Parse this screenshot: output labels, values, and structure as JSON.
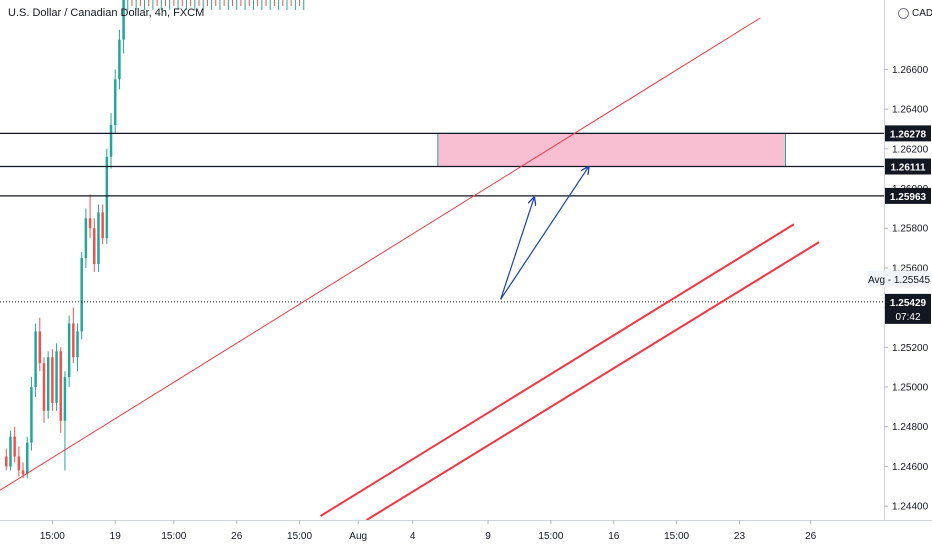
{
  "chart_data": {
    "type": "candlestick",
    "title": "U.S. Dollar / Canadian Dollar, 4h, FXCM",
    "currency": "CAD",
    "ylim": [
      1.2433,
      1.2695
    ],
    "y_ticks": [
      "1.24400",
      "1.24600",
      "1.24800",
      "1.25000",
      "1.25200",
      "1.25400",
      "1.25600",
      "1.25800",
      "1.26000",
      "1.26200",
      "1.26400",
      "1.26600"
    ],
    "x_ticks": [
      {
        "label": "15:00",
        "i": 11
      },
      {
        "label": "19",
        "i": 26
      },
      {
        "label": "15:00",
        "i": 40
      },
      {
        "label": "26",
        "i": 55
      },
      {
        "label": "15:00",
        "i": 70
      },
      {
        "label": "Aug",
        "i": 84
      },
      {
        "label": "4",
        "i": 97
      },
      {
        "label": "9",
        "i": 115
      },
      {
        "label": "15:00",
        "i": 130
      },
      {
        "label": "16",
        "i": 145
      },
      {
        "label": "15:00",
        "i": 160
      },
      {
        "label": "23",
        "i": 175
      },
      {
        "label": "26",
        "i": 192
      }
    ],
    "index_range": [
      -1.5,
      209.5
    ],
    "price_labels": {
      "level1": "1.26278",
      "level2": "1.26111",
      "level3": "1.25963",
      "current": "1.25429",
      "countdown": "07:42",
      "avg": "Avg - 1.25545"
    },
    "levels": [
      1.26278,
      1.26111,
      1.25963
    ],
    "current_price": 1.25429,
    "avg_price": 1.25545,
    "zone": {
      "i_start": 103,
      "i_end": 186,
      "top": 1.26278,
      "bottom": 1.26111
    },
    "lines": [
      {
        "name": "upper-trendline",
        "i1": -1.5,
        "p1": 1.2448,
        "i2": 180,
        "p2": 1.2686,
        "width": 1
      },
      {
        "name": "lower-channel-line-1",
        "i1": 75,
        "p1": 1.2435,
        "i2": 188,
        "p2": 1.2582,
        "width": 2
      },
      {
        "name": "lower-channel-line-2",
        "i1": 86,
        "p1": 1.2433,
        "i2": 194,
        "p2": 1.2573,
        "width": 2
      }
    ],
    "arrows": [
      {
        "name": "projection-arrow-1",
        "i1": 118,
        "p1": 1.25442,
        "i2": 126,
        "p2": 1.25955
      },
      {
        "name": "projection-arrow-2",
        "i1": 118,
        "p1": 1.25442,
        "i2": 139,
        "p2": 1.2611
      }
    ],
    "candles": [
      [
        1.2465,
        1.2469,
        1.2458,
        1.246
      ],
      [
        1.246,
        1.2478,
        1.2458,
        1.2475
      ],
      [
        1.2475,
        1.248,
        1.2462,
        1.2465
      ],
      [
        1.2465,
        1.247,
        1.2455,
        1.2458
      ],
      [
        1.2458,
        1.2462,
        1.2454,
        1.2456
      ],
      [
        1.2456,
        1.2475,
        1.2454,
        1.2472
      ],
      [
        1.2472,
        1.2505,
        1.2468,
        1.25
      ],
      [
        1.25,
        1.2532,
        1.2495,
        1.2528
      ],
      [
        1.2528,
        1.2535,
        1.2508,
        1.2512
      ],
      [
        1.2512,
        1.2515,
        1.2482,
        1.2488
      ],
      [
        1.2488,
        1.2518,
        1.2484,
        1.2515
      ],
      [
        1.2515,
        1.2519,
        1.2488,
        1.2492
      ],
      [
        1.2492,
        1.2522,
        1.2488,
        1.2518
      ],
      [
        1.2518,
        1.252,
        1.2477,
        1.2483
      ],
      [
        1.2483,
        1.2508,
        1.2458,
        1.2505
      ],
      [
        1.2505,
        1.2536,
        1.25,
        1.2532
      ],
      [
        1.2532,
        1.254,
        1.2512,
        1.2515
      ],
      [
        1.2515,
        1.2532,
        1.2508,
        1.2528
      ],
      [
        1.2528,
        1.2568,
        1.2524,
        1.2565
      ],
      [
        1.2565,
        1.259,
        1.256,
        1.2585
      ],
      [
        1.2585,
        1.2597,
        1.2575,
        1.258
      ],
      [
        1.258,
        1.2585,
        1.2558,
        1.2562
      ],
      [
        1.2562,
        1.2592,
        1.2558,
        1.2588
      ],
      [
        1.2588,
        1.2592,
        1.2572,
        1.2575
      ],
      [
        1.2575,
        1.262,
        1.2572,
        1.2616
      ],
      [
        1.2616,
        1.2638,
        1.261,
        1.2632
      ],
      [
        1.2632,
        1.266,
        1.2628,
        1.2655
      ],
      [
        1.2655,
        1.268,
        1.265,
        1.2675
      ],
      [
        1.2675,
        1.27,
        1.2668,
        1.2695
      ],
      [
        1.2695,
        1.27,
        1.269,
        1.2698
      ],
      [
        1.2698,
        1.27,
        1.2692,
        1.2695
      ],
      [
        1.2695,
        1.27,
        1.269,
        1.2698
      ],
      [
        1.2698,
        1.27,
        1.2692,
        1.2696
      ],
      [
        1.2696,
        1.27,
        1.269,
        1.2698
      ],
      [
        1.2698,
        1.27,
        1.2692,
        1.2695
      ],
      [
        1.2695,
        1.27,
        1.269,
        1.2698
      ],
      [
        1.2698,
        1.27,
        1.2692,
        1.2696
      ],
      [
        1.2696,
        1.27,
        1.269,
        1.2698
      ],
      [
        1.2698,
        1.27,
        1.2692,
        1.2695
      ],
      [
        1.2695,
        1.27,
        1.269,
        1.2698
      ],
      [
        1.2698,
        1.27,
        1.2692,
        1.2696
      ],
      [
        1.2696,
        1.27,
        1.269,
        1.2698
      ],
      [
        1.2698,
        1.27,
        1.2692,
        1.2695
      ],
      [
        1.2695,
        1.27,
        1.269,
        1.2698
      ],
      [
        1.2698,
        1.27,
        1.2692,
        1.2696
      ],
      [
        1.2696,
        1.27,
        1.269,
        1.2698
      ],
      [
        1.2698,
        1.27,
        1.2692,
        1.2695
      ],
      [
        1.2695,
        1.27,
        1.269,
        1.2698
      ],
      [
        1.2698,
        1.27,
        1.2692,
        1.2696
      ],
      [
        1.2696,
        1.27,
        1.269,
        1.2698
      ],
      [
        1.2698,
        1.27,
        1.2692,
        1.2695
      ],
      [
        1.2695,
        1.27,
        1.269,
        1.2698
      ],
      [
        1.2698,
        1.27,
        1.2692,
        1.2696
      ],
      [
        1.2696,
        1.27,
        1.269,
        1.2698
      ],
      [
        1.2698,
        1.27,
        1.2692,
        1.2695
      ],
      [
        1.2695,
        1.27,
        1.269,
        1.2698
      ],
      [
        1.2698,
        1.27,
        1.2692,
        1.2696
      ],
      [
        1.2696,
        1.27,
        1.269,
        1.2698
      ],
      [
        1.2698,
        1.27,
        1.2692,
        1.2695
      ],
      [
        1.2695,
        1.27,
        1.269,
        1.2698
      ],
      [
        1.2698,
        1.27,
        1.2692,
        1.2696
      ],
      [
        1.2696,
        1.27,
        1.269,
        1.2698
      ],
      [
        1.2698,
        1.27,
        1.2692,
        1.2695
      ],
      [
        1.2695,
        1.27,
        1.269,
        1.2698
      ],
      [
        1.2698,
        1.27,
        1.2692,
        1.2696
      ],
      [
        1.2696,
        1.27,
        1.269,
        1.2698
      ],
      [
        1.2698,
        1.27,
        1.2692,
        1.2695
      ],
      [
        1.2695,
        1.27,
        1.269,
        1.2698
      ],
      [
        1.2698,
        1.27,
        1.2692,
        1.2696
      ],
      [
        1.2696,
        1.27,
        1.269,
        1.2698
      ],
      [
        1.2698,
        1.27,
        1.2692,
        1.2695
      ],
      [
        1.2695,
        1.27,
        1.269,
        1.2698
      ]
    ]
  }
}
